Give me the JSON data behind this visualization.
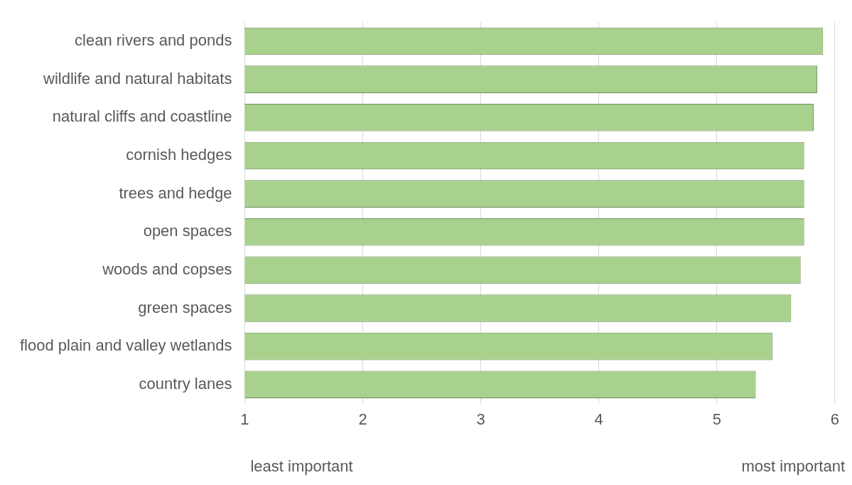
{
  "chart_data": {
    "type": "bar",
    "orientation": "horizontal",
    "categories": [
      "clean rivers and ponds",
      "wildlife and natural habitats",
      "natural cliffs and coastline",
      "cornish hedges",
      "trees and hedge",
      "open spaces",
      "woods and copses",
      "green spaces",
      "flood plain and valley wetlands",
      "country lanes"
    ],
    "values": [
      5.9,
      5.85,
      5.82,
      5.74,
      5.74,
      5.74,
      5.71,
      5.63,
      5.47,
      5.33
    ],
    "color": "#a9d18e",
    "xlim": [
      1,
      6
    ],
    "xticks": [
      1,
      2,
      3,
      4,
      5,
      6
    ],
    "grid": "x",
    "legend": false,
    "annotations": [
      "least important",
      "most important"
    ]
  }
}
